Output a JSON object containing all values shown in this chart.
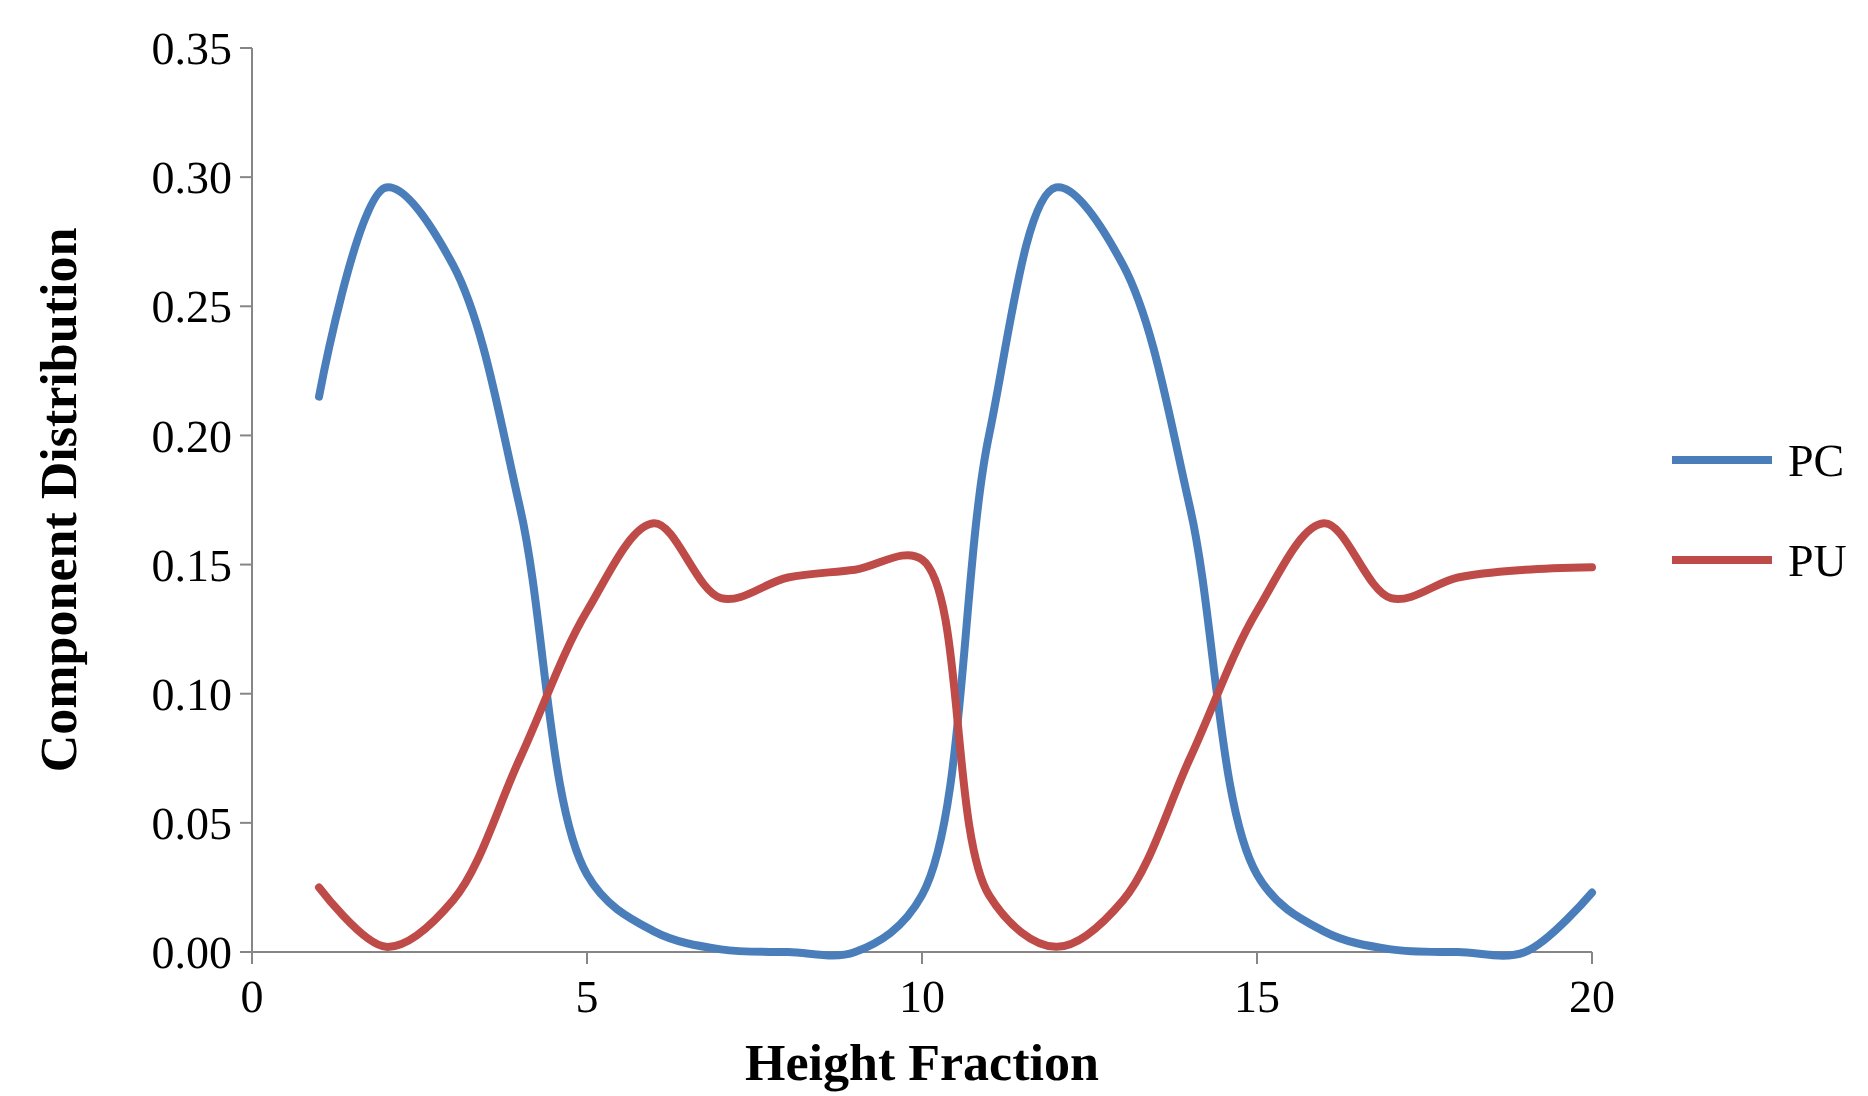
{
  "chart_data": {
    "type": "line",
    "xlabel": "Height Fraction",
    "ylabel": "Component Distribution",
    "x": [
      1,
      2,
      3,
      4,
      5,
      6,
      7,
      8,
      9,
      10,
      11,
      12,
      13,
      14,
      15,
      16,
      17,
      18,
      19,
      20
    ],
    "series": [
      {
        "name": "PC",
        "color": "#4a7ebb",
        "values": [
          0.215,
          0.296,
          0.266,
          0.172,
          0.03,
          0.008,
          0.001,
          0,
          0,
          0.022,
          0.2,
          0.296,
          0.266,
          0.172,
          0.03,
          0.008,
          0.001,
          0,
          0,
          0.023
        ]
      },
      {
        "name": "PU",
        "color": "#be4b48",
        "values": [
          0.025,
          0.002,
          0.02,
          0.075,
          0.132,
          0.166,
          0.137,
          0.145,
          0.148,
          0.152,
          0.022,
          0.002,
          0.02,
          0.075,
          0.132,
          0.166,
          0.137,
          0.145,
          0.148,
          0.149
        ]
      }
    ],
    "xlim": [
      0,
      20
    ],
    "xticks": [
      0,
      5,
      10,
      15,
      20
    ],
    "ylim": [
      0,
      0.35
    ],
    "yticks": [
      {
        "value": 0,
        "label": "0.00"
      },
      {
        "value": 0.05,
        "label": "0.05"
      },
      {
        "value": 0.1,
        "label": "0.10"
      },
      {
        "value": 0.15,
        "label": "0.15"
      },
      {
        "value": 0.2,
        "label": "0.20"
      },
      {
        "value": 0.25,
        "label": "0.25"
      },
      {
        "value": 0.3,
        "label": "0.30"
      },
      {
        "value": 0.35,
        "label": "0.35"
      }
    ],
    "grid": false,
    "legend": "right",
    "marker": "none",
    "line_style": "solid"
  }
}
